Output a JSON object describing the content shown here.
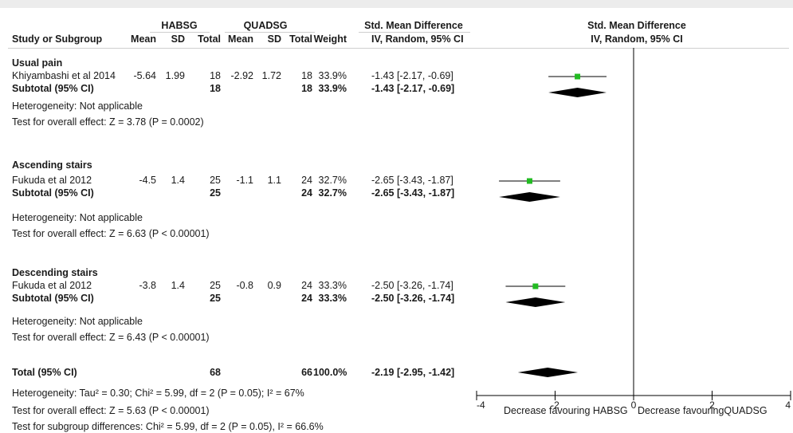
{
  "header": {
    "group1": "HABSG",
    "group2": "QUADSG",
    "effect_label": "Std. Mean Difference",
    "plot_title": "Std. Mean Difference",
    "plot_subtitle": "IV, Random, 95% CI",
    "columns": {
      "study": "Study or Subgroup",
      "mean1": "Mean",
      "sd1": "SD",
      "total1": "Total",
      "mean2": "Mean",
      "sd2": "SD",
      "total2": "Total",
      "weight": "Weight",
      "ci": "IV, Random, 95% CI"
    }
  },
  "subgroups": [
    {
      "title": "Usual pain",
      "study": {
        "name": "Khiyambashi et al 2014",
        "mean1": "-5.64",
        "sd1": "1.99",
        "total1": "18",
        "mean2": "-2.92",
        "sd2": "1.72",
        "total2": "18",
        "weight": "33.9%",
        "ci": "-1.43 [-2.17, -0.69]"
      },
      "subtotal": {
        "label": "Subtotal (95% CI)",
        "total1": "18",
        "total2": "18",
        "weight": "33.9%",
        "ci": "-1.43 [-2.17, -0.69]"
      },
      "heterogeneity": "Heterogeneity: Not applicable",
      "overall": "Test for overall effect: Z = 3.78 (P = 0.0002)"
    },
    {
      "title": "Ascending stairs",
      "study": {
        "name": "Fukuda et al 2012",
        "mean1": "-4.5",
        "sd1": "1.4",
        "total1": "25",
        "mean2": "-1.1",
        "sd2": "1.1",
        "total2": "24",
        "weight": "32.7%",
        "ci": "-2.65 [-3.43, -1.87]"
      },
      "subtotal": {
        "label": "Subtotal (95% CI)",
        "total1": "25",
        "total2": "24",
        "weight": "32.7%",
        "ci": "-2.65 [-3.43, -1.87]"
      },
      "heterogeneity": "Heterogeneity: Not applicable",
      "overall": "Test for overall effect: Z = 6.63 (P < 0.00001)"
    },
    {
      "title": "Descending stairs",
      "study": {
        "name": "Fukuda et al 2012",
        "mean1": "-3.8",
        "sd1": "1.4",
        "total1": "25",
        "mean2": "-0.8",
        "sd2": "0.9",
        "total2": "24",
        "weight": "33.3%",
        "ci": "-2.50 [-3.26, -1.74]"
      },
      "subtotal": {
        "label": "Subtotal (95% CI)",
        "total1": "25",
        "total2": "24",
        "weight": "33.3%",
        "ci": "-2.50 [-3.26, -1.74]"
      },
      "heterogeneity": "Heterogeneity: Not applicable",
      "overall": "Test for overall effect: Z = 6.43 (P < 0.00001)"
    }
  ],
  "total": {
    "label": "Total (95% CI)",
    "total1": "68",
    "total2": "66",
    "weight": "100.0%",
    "ci": "-2.19 [-2.95, -1.42]",
    "heterogeneity": "Heterogeneity: Tau² = 0.30; Chi² = 5.99, df = 2 (P = 0.05); I² = 67%",
    "overall": "Test for overall effect: Z = 5.63 (P < 0.00001)",
    "subgroup_diff": "Test for subgroup differences: Chi² = 5.99, df = 2 (P = 0.05), I² = 66.6%"
  },
  "axis": {
    "ticks": [
      "-4",
      "-2",
      "0",
      "2",
      "4"
    ],
    "left_label": "Decrease favouring HABSG",
    "right_label": "Decrease favouringQUADSG"
  },
  "colors": {
    "square": "#22bb22",
    "diamond": "#000000",
    "line": "#000000"
  },
  "chart_data": {
    "type": "forest",
    "measure": "Std. Mean Difference (IV, Random, 95% CI)",
    "xlim": [
      -4,
      4
    ],
    "xticks": [
      -4,
      -2,
      0,
      2,
      4
    ],
    "studies": [
      {
        "name": "Khiyambashi et al 2014",
        "subgroup": "Usual pain",
        "estimate": -1.43,
        "lower": -2.17,
        "upper": -0.69,
        "weight": 33.9
      },
      {
        "name": "Fukuda et al 2012",
        "subgroup": "Ascending stairs",
        "estimate": -2.65,
        "lower": -3.43,
        "upper": -1.87,
        "weight": 32.7
      },
      {
        "name": "Fukuda et al 2012",
        "subgroup": "Descending stairs",
        "estimate": -2.5,
        "lower": -3.26,
        "upper": -1.74,
        "weight": 33.3
      }
    ],
    "subtotals": [
      {
        "subgroup": "Usual pain",
        "estimate": -1.43,
        "lower": -2.17,
        "upper": -0.69
      },
      {
        "subgroup": "Ascending stairs",
        "estimate": -2.65,
        "lower": -3.43,
        "upper": -1.87
      },
      {
        "subgroup": "Descending stairs",
        "estimate": -2.5,
        "lower": -3.26,
        "upper": -1.74
      }
    ],
    "overall": {
      "estimate": -2.19,
      "lower": -2.95,
      "upper": -1.42
    }
  }
}
